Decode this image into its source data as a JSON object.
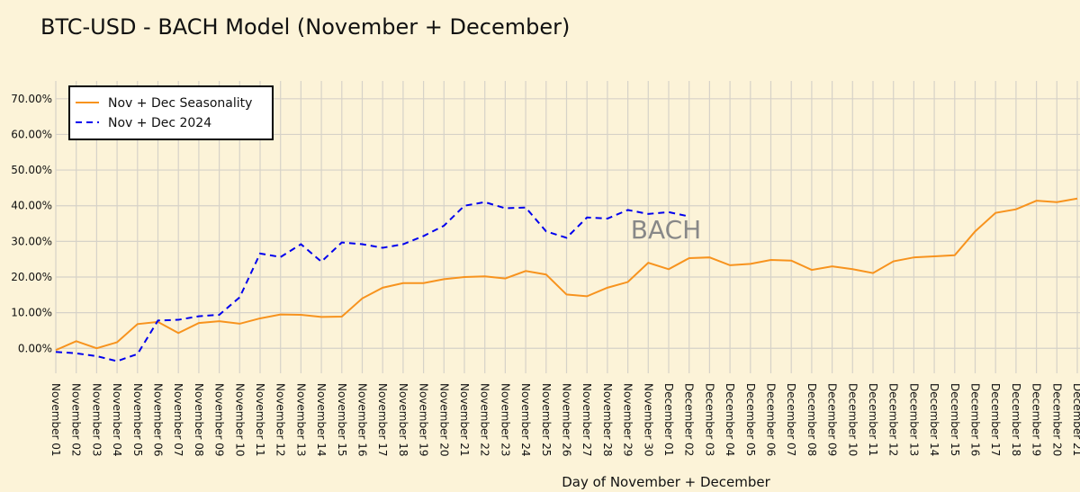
{
  "chart_data": {
    "type": "line",
    "title": "BTC-USD - BACH Model (November + December)",
    "x_label": "Day of November + December",
    "watermark": "BACH",
    "categories": [
      "November 01",
      "November 02",
      "November 03",
      "November 04",
      "November 05",
      "November 06",
      "November 07",
      "November 08",
      "November 09",
      "November 10",
      "November 11",
      "November 12",
      "November 13",
      "November 14",
      "November 15",
      "November 16",
      "November 17",
      "November 18",
      "November 19",
      "November 20",
      "November 21",
      "November 22",
      "November 23",
      "November 24",
      "November 25",
      "November 26",
      "November 27",
      "November 28",
      "November 29",
      "November 30",
      "December 01",
      "December 02",
      "December 03",
      "December 04",
      "December 05",
      "December 06",
      "December 07",
      "December 08",
      "December 09",
      "December 10",
      "December 11",
      "December 12",
      "December 13",
      "December 14",
      "December 15",
      "December 16",
      "December 17",
      "December 18",
      "December 19",
      "December 20",
      "December 21"
    ],
    "series": [
      {
        "name": "Nov + Dec Seasonality",
        "color": "#f7931e",
        "dashed": false,
        "values": [
          -0.5,
          2,
          0,
          1.7,
          6.8,
          7.4,
          4.3,
          7.1,
          7.6,
          6.9,
          8.4,
          9.5,
          9.4,
          8.8,
          8.9,
          14,
          17,
          18.3,
          18.3,
          19.4,
          20,
          20.2,
          19.6,
          21.7,
          20.7,
          15.1,
          14.6,
          17,
          18.6,
          24,
          22.2,
          25.3,
          25.5,
          23.3,
          23.7,
          24.8,
          24.6,
          22,
          23,
          22.2,
          21.1,
          24.4,
          25.5,
          25.8,
          26.1,
          32.8,
          38,
          39,
          41.4,
          41,
          42
        ]
      },
      {
        "name": "Nov + Dec 2024",
        "color": "#0000ee",
        "dashed": true,
        "values": [
          -1,
          -1.4,
          -2.2,
          -3.6,
          -1.6,
          7.8,
          8,
          9,
          9.4,
          14.3,
          26.6,
          25.6,
          29.2,
          24.3,
          29.7,
          29.2,
          28.2,
          29.2,
          31.5,
          34.4,
          40,
          41,
          39.3,
          39.5,
          32.8,
          31,
          36.7,
          36.4,
          38.8,
          37.7,
          38.2,
          37,
          null,
          null,
          null,
          null,
          null,
          null,
          null,
          null,
          null,
          null,
          null,
          null,
          null,
          null,
          null,
          null,
          null,
          null,
          null
        ]
      }
    ],
    "ylim": [
      -7,
      75
    ],
    "yticks": [
      {
        "value": 0,
        "label": "0.00%"
      },
      {
        "value": 10,
        "label": "10.00%"
      },
      {
        "value": 20,
        "label": "20.00%"
      },
      {
        "value": 30,
        "label": "30.00%"
      },
      {
        "value": 40,
        "label": "40.00%"
      },
      {
        "value": 50,
        "label": "50.00%"
      },
      {
        "value": 60,
        "label": "60.00%"
      },
      {
        "value": 70,
        "label": "70.00%"
      }
    ],
    "grid": true,
    "legend": "upper left"
  }
}
